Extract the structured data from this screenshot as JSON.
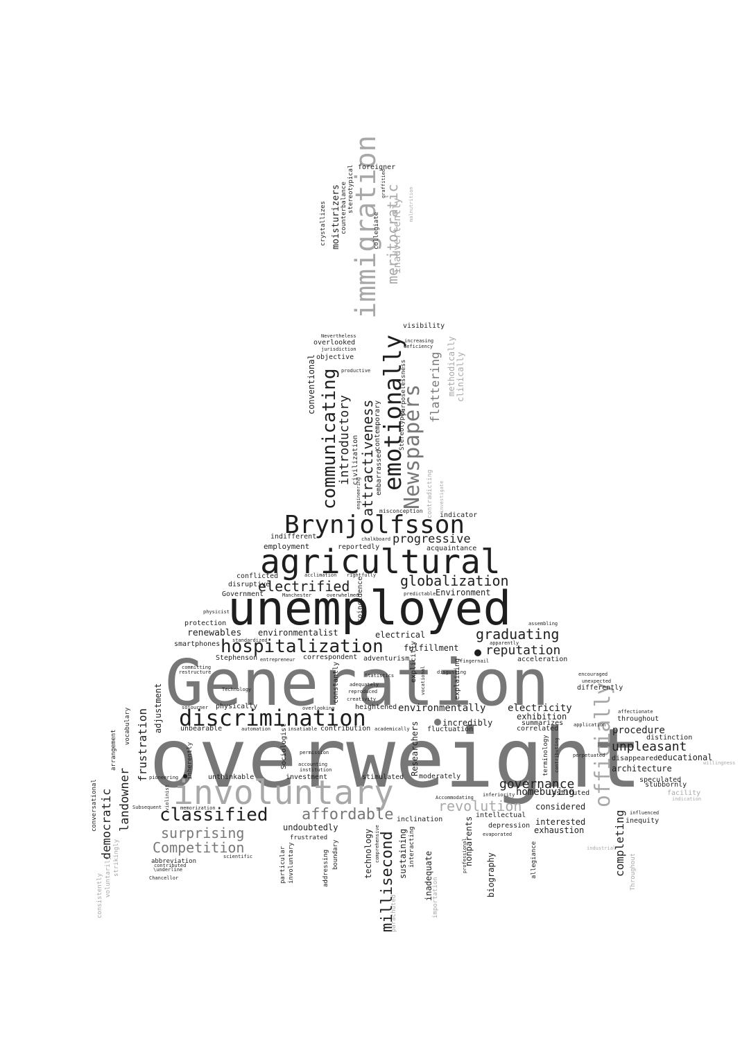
{
  "words": [
    {
      "text": "overweight",
      "tone": "mid"
    },
    {
      "text": "Generation",
      "tone": "mid"
    },
    {
      "text": "unemployed",
      "tone": "dark"
    },
    {
      "text": "agricultural",
      "tone": "dark"
    },
    {
      "text": "involuntary",
      "tone": "light"
    },
    {
      "text": "immigration",
      "tone": "light"
    },
    {
      "text": "Brynjolfsson",
      "tone": "dark"
    },
    {
      "text": "discrimination",
      "tone": "dark"
    },
    {
      "text": "hospitalization",
      "tone": "dark"
    },
    {
      "text": "emotionally",
      "tone": "dark"
    },
    {
      "text": "Newspapers",
      "tone": "mid"
    },
    {
      "text": "officially",
      "tone": "light"
    },
    {
      "text": "communicating",
      "tone": "dark"
    },
    {
      "text": "classified",
      "tone": "dark"
    },
    {
      "text": "meritocratic",
      "tone": "light"
    },
    {
      "text": "attractiveness",
      "tone": "dark"
    },
    {
      "text": "affordable",
      "tone": "mid"
    },
    {
      "text": "globalization",
      "tone": "dark"
    },
    {
      "text": "electrified",
      "tone": "dark"
    },
    {
      "text": "millisecond",
      "tone": "dark"
    },
    {
      "text": "surprising",
      "tone": "mid"
    },
    {
      "text": "Competition",
      "tone": "mid"
    },
    {
      "text": "revolution",
      "tone": "light"
    },
    {
      "text": "graduating",
      "tone": "dark"
    },
    {
      "text": "progressive",
      "tone": "dark"
    },
    {
      "text": "unpleasant",
      "tone": "dark"
    },
    {
      "text": "introductory",
      "tone": "dark"
    },
    {
      "text": "reputation",
      "tone": "dark"
    },
    {
      "text": "governance",
      "tone": "dark"
    },
    {
      "text": "completing",
      "tone": "dark"
    },
    {
      "text": "landowner",
      "tone": "dark"
    },
    {
      "text": "democratic",
      "tone": "dark"
    },
    {
      "text": "flattering",
      "tone": "mid"
    },
    {
      "text": "frustration",
      "tone": "dark"
    },
    {
      "text": "environmentally",
      "tone": "dark"
    },
    {
      "text": "inadvertently",
      "tone": "light"
    },
    {
      "text": "moisturizers",
      "tone": "dark"
    },
    {
      "text": "conventional",
      "tone": "dark"
    },
    {
      "text": "electricity",
      "tone": "dark"
    },
    {
      "text": "procedure",
      "tone": "dark"
    },
    {
      "text": "homebuying",
      "tone": "dark"
    },
    {
      "text": "renewables",
      "tone": "dark"
    },
    {
      "text": "environmentalist",
      "tone": "dark"
    },
    {
      "text": "adjustment",
      "tone": "dark"
    },
    {
      "text": "methodically",
      "tone": "light"
    },
    {
      "text": "clinically",
      "tone": "light"
    },
    {
      "text": "architecture",
      "tone": "dark"
    },
    {
      "text": "educational",
      "tone": "dark"
    },
    {
      "text": "interested",
      "tone": "dark"
    },
    {
      "text": "exhaustion",
      "tone": "dark"
    },
    {
      "text": "considered",
      "tone": "dark"
    },
    {
      "text": "exhibition",
      "tone": "dark"
    },
    {
      "text": "incredibly",
      "tone": "dark"
    },
    {
      "text": "fulfillment",
      "tone": "dark"
    },
    {
      "text": "electrical",
      "tone": "dark"
    },
    {
      "text": "employment",
      "tone": "dark"
    },
    {
      "text": "undoubtedly",
      "tone": "dark"
    },
    {
      "text": "inadequate",
      "tone": "dark"
    },
    {
      "text": "nonparents",
      "tone": "dark"
    },
    {
      "text": "biography",
      "tone": "dark"
    },
    {
      "text": "technology",
      "tone": "dark"
    },
    {
      "text": "sustaining",
      "tone": "dark"
    },
    {
      "text": "Researchers",
      "tone": "dark"
    },
    {
      "text": "Environment",
      "tone": "dark"
    },
    {
      "text": "inclination",
      "tone": "dark"
    },
    {
      "text": "heightened",
      "tone": "dark"
    },
    {
      "text": "physically",
      "tone": "dark"
    },
    {
      "text": "unthinkable",
      "tone": "dark"
    },
    {
      "text": "unbearable",
      "tone": "dark"
    },
    {
      "text": "contribution",
      "tone": "dark"
    },
    {
      "text": "investment",
      "tone": "dark"
    },
    {
      "text": "stimulated",
      "tone": "dark"
    },
    {
      "text": "moderately",
      "tone": "dark"
    },
    {
      "text": "depression",
      "tone": "dark"
    },
    {
      "text": "intellectual",
      "tone": "dark"
    },
    {
      "text": "fluctuation",
      "tone": "dark"
    },
    {
      "text": "correlated",
      "tone": "dark"
    },
    {
      "text": "summarizes",
      "tone": "dark"
    },
    {
      "text": "throughout",
      "tone": "dark"
    },
    {
      "text": "distinction",
      "tone": "dark"
    },
    {
      "text": "disappeared",
      "tone": "dark"
    },
    {
      "text": "speculated",
      "tone": "dark"
    },
    {
      "text": "stubbornly",
      "tone": "dark"
    },
    {
      "text": "instituted",
      "tone": "dark"
    },
    {
      "text": "inequity",
      "tone": "dark"
    },
    {
      "text": "differently",
      "tone": "dark"
    },
    {
      "text": "acceleration",
      "tone": "dark"
    },
    {
      "text": "adventurism",
      "tone": "dark"
    },
    {
      "text": "correspondent",
      "tone": "dark"
    },
    {
      "text": "constantly",
      "tone": "dark"
    },
    {
      "text": "explaining",
      "tone": "dark"
    },
    {
      "text": "explicitly",
      "tone": "dark"
    },
    {
      "text": "Stephenson",
      "tone": "dark"
    },
    {
      "text": "smartphones",
      "tone": "dark"
    },
    {
      "text": "protection",
      "tone": "dark"
    },
    {
      "text": "Government",
      "tone": "dark"
    },
    {
      "text": "disruptive",
      "tone": "dark"
    },
    {
      "text": "conflicted",
      "tone": "dark"
    },
    {
      "text": "indifferent",
      "tone": "dark"
    },
    {
      "text": "reportedly",
      "tone": "dark"
    },
    {
      "text": "acquaintance",
      "tone": "dark"
    },
    {
      "text": "indicator",
      "tone": "dark"
    },
    {
      "text": "coincidence",
      "tone": "dark"
    },
    {
      "text": "civilization",
      "tone": "dark"
    },
    {
      "text": "contemporary",
      "tone": "dark"
    },
    {
      "text": "embarrassed",
      "tone": "dark"
    },
    {
      "text": "overlooked",
      "tone": "dark"
    },
    {
      "text": "objective",
      "tone": "dark"
    },
    {
      "text": "visibility",
      "tone": "dark"
    },
    {
      "text": "foreigner",
      "tone": "dark"
    },
    {
      "text": "crystallizes",
      "tone": "dark"
    },
    {
      "text": "counterbalance",
      "tone": "dark"
    },
    {
      "text": "stereotypical",
      "tone": "dark"
    },
    {
      "text": "collegiate",
      "tone": "dark"
    },
    {
      "text": "purposelessness",
      "tone": "dark"
    },
    {
      "text": "Stereotypes",
      "tone": "dark"
    },
    {
      "text": "contradicting",
      "tone": "light"
    },
    {
      "text": "misconception",
      "tone": "dark"
    },
    {
      "text": "vocabulary",
      "tone": "dark"
    },
    {
      "text": "arrangement",
      "tone": "dark"
    },
    {
      "text": "conversational",
      "tone": "dark"
    },
    {
      "text": "consistently",
      "tone": "light"
    },
    {
      "text": "voluntarily",
      "tone": "light"
    },
    {
      "text": "strikingly",
      "tone": "light"
    },
    {
      "text": "inherently",
      "tone": "dark"
    },
    {
      "text": "Sociologist",
      "tone": "dark"
    },
    {
      "text": "particular",
      "tone": "dark"
    },
    {
      "text": "involuntary",
      "tone": "dark"
    },
    {
      "text": "addressing",
      "tone": "dark"
    },
    {
      "text": "boundary",
      "tone": "dark"
    },
    {
      "text": "frustrated",
      "tone": "dark"
    },
    {
      "text": "interacting",
      "tone": "dark"
    },
    {
      "text": "importation",
      "tone": "light"
    },
    {
      "text": "parachuted",
      "tone": "light"
    },
    {
      "text": "allegiance",
      "tone": "dark"
    },
    {
      "text": "Throughout",
      "tone": "light"
    },
    {
      "text": "facility",
      "tone": "light"
    },
    {
      "text": "terminology",
      "tone": "dark"
    },
    {
      "text": "abbreviation",
      "tone": "dark"
    },
    {
      "text": "\\underline",
      "tone": "dark"
    },
    {
      "text": "Chancellor",
      "tone": "dark"
    },
    {
      "text": "contributed",
      "tone": "dark"
    },
    {
      "text": "pioneering",
      "tone": "dark"
    },
    {
      "text": "violinist",
      "tone": "dark"
    },
    {
      "text": "memorization",
      "tone": "dark"
    },
    {
      "text": "Subsequent",
      "tone": "dark"
    },
    {
      "text": "scientific",
      "tone": "dark"
    },
    {
      "text": "permission",
      "tone": "dark"
    },
    {
      "text": "accounting",
      "tone": "dark"
    },
    {
      "text": "institution",
      "tone": "dark"
    },
    {
      "text": "creativity",
      "tone": "dark"
    },
    {
      "text": "reproduced",
      "tone": "dark"
    },
    {
      "text": "adequately",
      "tone": "dark"
    },
    {
      "text": "Statistics",
      "tone": "dark"
    },
    {
      "text": "Technology",
      "tone": "dark"
    },
    {
      "text": "committing",
      "tone": "dark"
    },
    {
      "text": "restructure",
      "tone": "dark"
    },
    {
      "text": "sojourner",
      "tone": "dark"
    },
    {
      "text": "automation",
      "tone": "dark"
    },
    {
      "text": "insatiable",
      "tone": "dark"
    },
    {
      "text": "academically",
      "tone": "dark"
    },
    {
      "text": "overlooking",
      "tone": "dark"
    },
    {
      "text": "vocational",
      "tone": "dark"
    },
    {
      "text": "disgusting",
      "tone": "dark"
    },
    {
      "text": "fingernail",
      "tone": "dark"
    },
    {
      "text": "apparently",
      "tone": "dark"
    },
    {
      "text": "assembling",
      "tone": "dark"
    },
    {
      "text": "encouraged",
      "tone": "dark"
    },
    {
      "text": "unexpected",
      "tone": "dark"
    },
    {
      "text": "affectionate",
      "tone": "dark"
    },
    {
      "text": "application",
      "tone": "dark"
    },
    {
      "text": "perpetuated",
      "tone": "dark"
    },
    {
      "text": "contributing",
      "tone": "dark"
    },
    {
      "text": "willingness",
      "tone": "light"
    },
    {
      "text": "indication",
      "tone": "light"
    },
    {
      "text": "influenced",
      "tone": "dark"
    },
    {
      "text": "industrial",
      "tone": "light"
    },
    {
      "text": "evaporated",
      "tone": "dark"
    },
    {
      "text": "inferiority",
      "tone": "dark"
    },
    {
      "text": "Accommodating",
      "tone": "dark"
    },
    {
      "text": "professional",
      "tone": "dark"
    },
    {
      "text": "comprehensive",
      "tone": "dark"
    },
    {
      "text": "entrepreneur",
      "tone": "dark"
    },
    {
      "text": "standardized",
      "tone": "dark"
    },
    {
      "text": "physicist",
      "tone": "dark"
    },
    {
      "text": "Manchester",
      "tone": "dark"
    },
    {
      "text": "overwhelmed",
      "tone": "dark"
    },
    {
      "text": "predictable",
      "tone": "dark"
    },
    {
      "text": "acclimation",
      "tone": "dark"
    },
    {
      "text": "rightfully",
      "tone": "dark"
    },
    {
      "text": "chalkboard",
      "tone": "dark"
    },
    {
      "text": "engineering",
      "tone": "dark"
    },
    {
      "text": "investigate",
      "tone": "light"
    },
    {
      "text": "Nevertheless",
      "tone": "dark"
    },
    {
      "text": "jurisdiction",
      "tone": "dark"
    },
    {
      "text": "increasing",
      "tone": "dark"
    },
    {
      "text": "deficiency",
      "tone": "dark"
    },
    {
      "text": "productive",
      "tone": "dark"
    },
    {
      "text": "graffitied",
      "tone": "dark"
    },
    {
      "text": "malnutrition",
      "tone": "light"
    }
  ],
  "colors": {
    "dark": "#1e1e1e",
    "mid": "#777777",
    "light": "#a8a8a8",
    "background": "#ffffff"
  }
}
